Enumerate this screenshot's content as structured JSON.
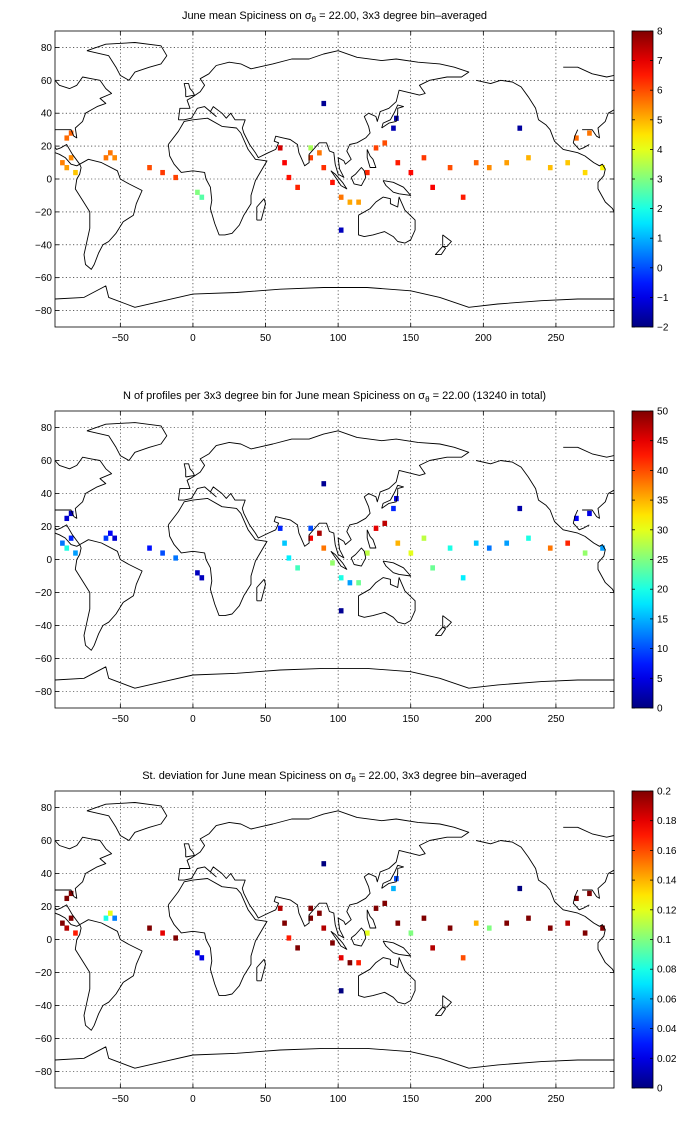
{
  "chart_data": [
    {
      "type": "heatmap",
      "title": {
        "pre": "June mean Spiciness on ",
        "sym": "σ",
        "sub": "θ",
        "post": " = 22.00, 3x3 degree bin–averaged"
      },
      "x_ticks": [
        -50,
        0,
        50,
        100,
        150,
        200,
        250
      ],
      "y_ticks": [
        80,
        60,
        40,
        20,
        0,
        -20,
        -40,
        -60,
        -80
      ],
      "xlim": [
        -95,
        290
      ],
      "ylim": [
        -90,
        90
      ],
      "colorbar": {
        "min": -2,
        "max": 8,
        "ticks": [
          8,
          7,
          6,
          5,
          4,
          3,
          2,
          1,
          0,
          -1,
          -2
        ]
      },
      "colormap": "jet",
      "grid": true,
      "cells": [
        {
          "lon": -90,
          "lat": 10,
          "value": 5.5
        },
        {
          "lon": -87,
          "lat": 7,
          "value": 5.2
        },
        {
          "lon": -84,
          "lat": 13,
          "value": 5.4
        },
        {
          "lon": -81,
          "lat": 4,
          "value": 4.8
        },
        {
          "lon": -87,
          "lat": 25,
          "value": 5.7
        },
        {
          "lon": -84,
          "lat": 28,
          "value": 5.8
        },
        {
          "lon": -60,
          "lat": 13,
          "value": 5.6
        },
        {
          "lon": -57,
          "lat": 16,
          "value": 5.6
        },
        {
          "lon": -54,
          "lat": 13,
          "value": 5.4
        },
        {
          "lon": -30,
          "lat": 7,
          "value": 6.0
        },
        {
          "lon": -21,
          "lat": 4,
          "value": 6.2
        },
        {
          "lon": -12,
          "lat": 1,
          "value": 6.1
        },
        {
          "lon": 6,
          "lat": -11,
          "value": 2.6
        },
        {
          "lon": 60,
          "lat": 19,
          "value": 7.2
        },
        {
          "lon": 63,
          "lat": 10,
          "value": 6.8
        },
        {
          "lon": 66,
          "lat": 1,
          "value": 6.6
        },
        {
          "lon": 72,
          "lat": -5,
          "value": 6.4
        },
        {
          "lon": 81,
          "lat": 13,
          "value": 6.1
        },
        {
          "lon": 87,
          "lat": 16,
          "value": 5.6
        },
        {
          "lon": 90,
          "lat": 7,
          "value": 6.3
        },
        {
          "lon": 96,
          "lat": -2,
          "value": 6.6
        },
        {
          "lon": 102,
          "lat": -11,
          "value": 5.6
        },
        {
          "lon": 108,
          "lat": -14,
          "value": 5.1
        },
        {
          "lon": 114,
          "lat": -14,
          "value": 5.2
        },
        {
          "lon": 120,
          "lat": 4,
          "value": 6.4
        },
        {
          "lon": 126,
          "lat": 19,
          "value": 6.1
        },
        {
          "lon": 132,
          "lat": 22,
          "value": 6.0
        },
        {
          "lon": 138,
          "lat": 31,
          "value": -1.5
        },
        {
          "lon": 140,
          "lat": 37,
          "value": -1.6
        },
        {
          "lon": 141,
          "lat": 10,
          "value": 6.5
        },
        {
          "lon": 150,
          "lat": 4,
          "value": 6.7
        },
        {
          "lon": 159,
          "lat": 13,
          "value": 6.2
        },
        {
          "lon": 165,
          "lat": -5,
          "value": 6.8
        },
        {
          "lon": 177,
          "lat": 7,
          "value": 6.0
        },
        {
          "lon": 186,
          "lat": -11,
          "value": 6.5
        },
        {
          "lon": 195,
          "lat": 10,
          "value": 5.8
        },
        {
          "lon": 204,
          "lat": 7,
          "value": 5.4
        },
        {
          "lon": 216,
          "lat": 10,
          "value": 5.2
        },
        {
          "lon": 231,
          "lat": 13,
          "value": 5.0
        },
        {
          "lon": 246,
          "lat": 7,
          "value": 4.9
        },
        {
          "lon": 258,
          "lat": 10,
          "value": 4.8
        },
        {
          "lon": 270,
          "lat": 4,
          "value": 4.6
        },
        {
          "lon": 282,
          "lat": 7,
          "value": 4.3
        },
        {
          "lon": 264,
          "lat": 25,
          "value": 5.7
        },
        {
          "lon": 273,
          "lat": 28,
          "value": 5.6
        },
        {
          "lon": 225,
          "lat": 31,
          "value": -1.7
        },
        {
          "lon": 90,
          "lat": 46,
          "value": -1.8
        },
        {
          "lon": 102,
          "lat": -31,
          "value": -1.4
        },
        {
          "lon": 81,
          "lat": 19,
          "value": 3.4
        },
        {
          "lon": 3,
          "lat": -8,
          "value": 3.0
        }
      ]
    },
    {
      "type": "heatmap",
      "title": {
        "pre": "N of profiles per 3x3 degree bin for June mean Spiciness on ",
        "sym": "σ",
        "sub": "θ",
        "post": " = 22.00 (13240 in total)"
      },
      "x_ticks": [
        -50,
        0,
        50,
        100,
        150,
        200,
        250
      ],
      "y_ticks": [
        80,
        60,
        40,
        20,
        0,
        -20,
        -40,
        -60,
        -80
      ],
      "xlim": [
        -95,
        290
      ],
      "ylim": [
        -90,
        90
      ],
      "colorbar": {
        "min": 0,
        "max": 50,
        "ticks": [
          50,
          45,
          40,
          35,
          30,
          25,
          20,
          15,
          10,
          5,
          0
        ]
      },
      "colormap": "jet",
      "grid": true,
      "cells": [
        {
          "lon": -90,
          "lat": 10,
          "value": 12
        },
        {
          "lon": -87,
          "lat": 7,
          "value": 20
        },
        {
          "lon": -84,
          "lat": 13,
          "value": 8
        },
        {
          "lon": -81,
          "lat": 4,
          "value": 14
        },
        {
          "lon": -87,
          "lat": 25,
          "value": 4
        },
        {
          "lon": -84,
          "lat": 28,
          "value": 3
        },
        {
          "lon": -60,
          "lat": 13,
          "value": 9
        },
        {
          "lon": -57,
          "lat": 16,
          "value": 6
        },
        {
          "lon": -54,
          "lat": 13,
          "value": 4
        },
        {
          "lon": -30,
          "lat": 7,
          "value": 7
        },
        {
          "lon": -21,
          "lat": 4,
          "value": 10
        },
        {
          "lon": -12,
          "lat": 1,
          "value": 12
        },
        {
          "lon": 6,
          "lat": -11,
          "value": 3
        },
        {
          "lon": 60,
          "lat": 19,
          "value": 8
        },
        {
          "lon": 63,
          "lat": 10,
          "value": 16
        },
        {
          "lon": 66,
          "lat": 1,
          "value": 18
        },
        {
          "lon": 72,
          "lat": -5,
          "value": 22
        },
        {
          "lon": 81,
          "lat": 13,
          "value": 44
        },
        {
          "lon": 87,
          "lat": 16,
          "value": 48
        },
        {
          "lon": 90,
          "lat": 7,
          "value": 38
        },
        {
          "lon": 96,
          "lat": -2,
          "value": 26
        },
        {
          "lon": 102,
          "lat": -11,
          "value": 20
        },
        {
          "lon": 108,
          "lat": -14,
          "value": 14
        },
        {
          "lon": 114,
          "lat": -14,
          "value": 24
        },
        {
          "lon": 120,
          "lat": 4,
          "value": 28
        },
        {
          "lon": 126,
          "lat": 19,
          "value": 45
        },
        {
          "lon": 132,
          "lat": 22,
          "value": 47
        },
        {
          "lon": 138,
          "lat": 31,
          "value": 8
        },
        {
          "lon": 140,
          "lat": 37,
          "value": 5
        },
        {
          "lon": 141,
          "lat": 10,
          "value": 35
        },
        {
          "lon": 150,
          "lat": 4,
          "value": 30
        },
        {
          "lon": 159,
          "lat": 13,
          "value": 28
        },
        {
          "lon": 165,
          "lat": -5,
          "value": 24
        },
        {
          "lon": 177,
          "lat": 7,
          "value": 20
        },
        {
          "lon": 186,
          "lat": -11,
          "value": 18
        },
        {
          "lon": 195,
          "lat": 10,
          "value": 16
        },
        {
          "lon": 204,
          "lat": 7,
          "value": 12
        },
        {
          "lon": 216,
          "lat": 10,
          "value": 14
        },
        {
          "lon": 231,
          "lat": 13,
          "value": 20
        },
        {
          "lon": 246,
          "lat": 7,
          "value": 38
        },
        {
          "lon": 258,
          "lat": 10,
          "value": 42
        },
        {
          "lon": 270,
          "lat": 4,
          "value": 26
        },
        {
          "lon": 282,
          "lat": 7,
          "value": 14
        },
        {
          "lon": 264,
          "lat": 25,
          "value": 6
        },
        {
          "lon": 273,
          "lat": 28,
          "value": 5
        },
        {
          "lon": 225,
          "lat": 31,
          "value": 2
        },
        {
          "lon": 90,
          "lat": 46,
          "value": 1
        },
        {
          "lon": 102,
          "lat": -31,
          "value": 1
        },
        {
          "lon": 81,
          "lat": 19,
          "value": 10
        },
        {
          "lon": 3,
          "lat": -8,
          "value": 3
        }
      ]
    },
    {
      "type": "heatmap",
      "title": {
        "pre": "St. deviation for June mean Spiciness on ",
        "sym": "σ",
        "sub": "θ",
        "post": " = 22.00, 3x3 degree bin–averaged"
      },
      "x_ticks": [
        -50,
        0,
        50,
        100,
        150,
        200,
        250
      ],
      "y_ticks": [
        80,
        60,
        40,
        20,
        0,
        -20,
        -40,
        -60,
        -80
      ],
      "xlim": [
        -95,
        290
      ],
      "ylim": [
        -90,
        90
      ],
      "colorbar": {
        "min": 0,
        "max": 0.2,
        "ticks": [
          0.2,
          0.18,
          0.16,
          0.14,
          0.12,
          0.1,
          0.08,
          0.06,
          0.04,
          0.02,
          0
        ]
      },
      "colormap": "jet",
      "grid": true,
      "cells": [
        {
          "lon": -90,
          "lat": 10,
          "value": 0.2
        },
        {
          "lon": -87,
          "lat": 7,
          "value": 0.19
        },
        {
          "lon": -84,
          "lat": 13,
          "value": 0.2
        },
        {
          "lon": -81,
          "lat": 4,
          "value": 0.17
        },
        {
          "lon": -87,
          "lat": 25,
          "value": 0.2
        },
        {
          "lon": -84,
          "lat": 28,
          "value": 0.2
        },
        {
          "lon": -60,
          "lat": 13,
          "value": 0.08
        },
        {
          "lon": -57,
          "lat": 16,
          "value": 0.12
        },
        {
          "lon": -54,
          "lat": 13,
          "value": 0.05
        },
        {
          "lon": -30,
          "lat": 7,
          "value": 0.2
        },
        {
          "lon": -21,
          "lat": 4,
          "value": 0.18
        },
        {
          "lon": -12,
          "lat": 1,
          "value": 0.2
        },
        {
          "lon": 6,
          "lat": -11,
          "value": 0.02
        },
        {
          "lon": 60,
          "lat": 19,
          "value": 0.19
        },
        {
          "lon": 63,
          "lat": 10,
          "value": 0.2
        },
        {
          "lon": 66,
          "lat": 1,
          "value": 0.17
        },
        {
          "lon": 72,
          "lat": -5,
          "value": 0.2
        },
        {
          "lon": 81,
          "lat": 13,
          "value": 0.2
        },
        {
          "lon": 87,
          "lat": 16,
          "value": 0.2
        },
        {
          "lon": 90,
          "lat": 7,
          "value": 0.19
        },
        {
          "lon": 96,
          "lat": -2,
          "value": 0.2
        },
        {
          "lon": 102,
          "lat": -11,
          "value": 0.18
        },
        {
          "lon": 108,
          "lat": -14,
          "value": 0.2
        },
        {
          "lon": 114,
          "lat": -14,
          "value": 0.17
        },
        {
          "lon": 120,
          "lat": 4,
          "value": 0.12
        },
        {
          "lon": 126,
          "lat": 19,
          "value": 0.2
        },
        {
          "lon": 132,
          "lat": 22,
          "value": 0.2
        },
        {
          "lon": 138,
          "lat": 31,
          "value": 0.06
        },
        {
          "lon": 140,
          "lat": 37,
          "value": 0.04
        },
        {
          "lon": 141,
          "lat": 10,
          "value": 0.2
        },
        {
          "lon": 150,
          "lat": 4,
          "value": 0.1
        },
        {
          "lon": 159,
          "lat": 13,
          "value": 0.2
        },
        {
          "lon": 165,
          "lat": -5,
          "value": 0.19
        },
        {
          "lon": 177,
          "lat": 7,
          "value": 0.2
        },
        {
          "lon": 186,
          "lat": -11,
          "value": 0.16
        },
        {
          "lon": 195,
          "lat": 10,
          "value": 0.14
        },
        {
          "lon": 204,
          "lat": 7,
          "value": 0.1
        },
        {
          "lon": 216,
          "lat": 10,
          "value": 0.2
        },
        {
          "lon": 231,
          "lat": 13,
          "value": 0.2
        },
        {
          "lon": 246,
          "lat": 7,
          "value": 0.2
        },
        {
          "lon": 258,
          "lat": 10,
          "value": 0.19
        },
        {
          "lon": 270,
          "lat": 4,
          "value": 0.2
        },
        {
          "lon": 282,
          "lat": 7,
          "value": 0.2
        },
        {
          "lon": 264,
          "lat": 25,
          "value": 0.2
        },
        {
          "lon": 273,
          "lat": 28,
          "value": 0.2
        },
        {
          "lon": 225,
          "lat": 31,
          "value": 0.0
        },
        {
          "lon": 90,
          "lat": 46,
          "value": 0.0
        },
        {
          "lon": 102,
          "lat": -31,
          "value": 0.0
        },
        {
          "lon": 81,
          "lat": 19,
          "value": 0.2
        },
        {
          "lon": 3,
          "lat": -8,
          "value": 0.02
        }
      ]
    }
  ]
}
